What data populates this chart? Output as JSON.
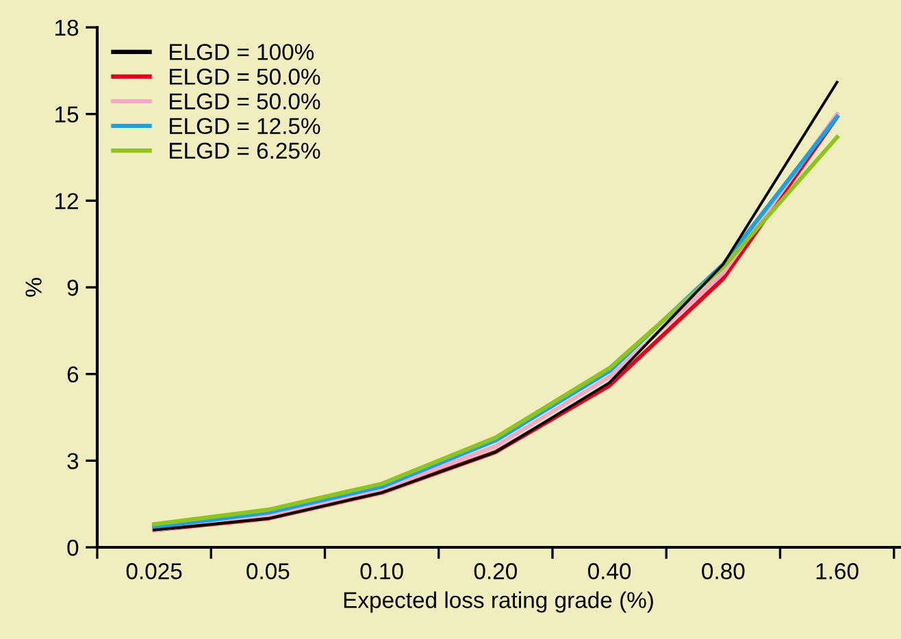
{
  "chart_data": {
    "type": "line",
    "xlabel": "Expected loss rating grade (%)",
    "ylabel": "%",
    "categories": [
      "0.025",
      "0.05",
      "0.10",
      "0.20",
      "0.40",
      "0.80",
      "1.60"
    ],
    "ylim": [
      0,
      18
    ],
    "yticks": [
      0,
      3,
      6,
      9,
      12,
      15,
      18
    ],
    "grid": false,
    "legend": "top left",
    "marker": "none",
    "line_style": "solid",
    "series": [
      {
        "name": "ELGD = 100%",
        "color": "#000000",
        "values": [
          0.6,
          1.0,
          1.9,
          3.3,
          5.7,
          9.8,
          16.1
        ]
      },
      {
        "name": "ELGD = 50.0%",
        "color": "#e3001b",
        "values": [
          0.6,
          1.0,
          1.9,
          3.3,
          5.6,
          9.3,
          14.9
        ]
      },
      {
        "name": "ELGD = 50.0%",
        "color": "#f5a9c4",
        "values": [
          0.6,
          1.1,
          2.0,
          3.5,
          5.9,
          9.5,
          15.0
        ]
      },
      {
        "name": "ELGD = 12.5%",
        "color": "#1aa3e0",
        "values": [
          0.7,
          1.2,
          2.1,
          3.7,
          6.1,
          9.8,
          14.9
        ]
      },
      {
        "name": "ELGD = 6.25%",
        "color": "#8fc31f",
        "values": [
          0.8,
          1.3,
          2.2,
          3.8,
          6.2,
          9.7,
          14.2
        ]
      }
    ]
  }
}
